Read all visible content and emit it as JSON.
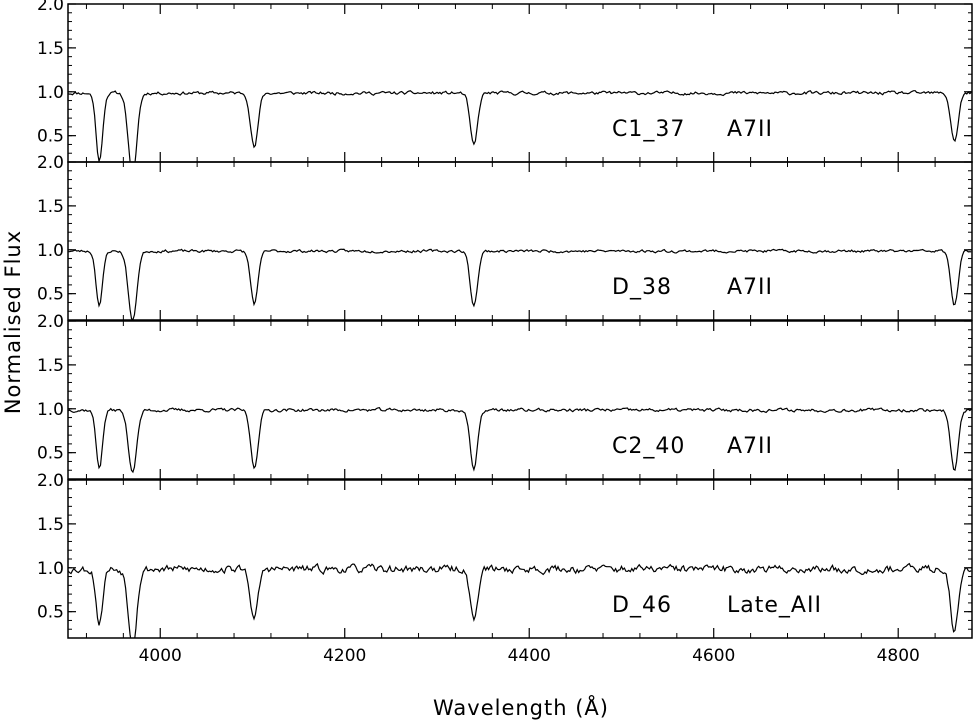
{
  "chart_data": {
    "type": "line",
    "xlabel": "Wavelength (Å)",
    "ylabel": "Normalised Flux",
    "xlim": [
      3900,
      4880
    ],
    "ylim": [
      0.2,
      2.0
    ],
    "x_ticks": [
      4000,
      4200,
      4400,
      4600,
      4800
    ],
    "y_ticks": [
      0.5,
      1.0,
      1.5,
      2.0
    ],
    "grid": false,
    "line_color": "#000000",
    "panels": [
      {
        "star": "C1_37",
        "spectral_type": "A7II",
        "noise": 0.035,
        "seed": 11,
        "features": [
          {
            "center": 3934,
            "depth": 0.78,
            "width": 3.5
          },
          {
            "center": 3970,
            "depth": 0.95,
            "width": 4.5
          },
          {
            "center": 4102,
            "depth": 0.62,
            "width": 4.0
          },
          {
            "center": 4340,
            "depth": 0.6,
            "width": 4.0
          },
          {
            "center": 4861,
            "depth": 0.55,
            "width": 4.0
          }
        ]
      },
      {
        "star": "D_38",
        "spectral_type": "A7II",
        "noise": 0.03,
        "seed": 23,
        "features": [
          {
            "center": 3934,
            "depth": 0.62,
            "width": 3.5
          },
          {
            "center": 3970,
            "depth": 0.8,
            "width": 4.5
          },
          {
            "center": 4102,
            "depth": 0.6,
            "width": 4.0
          },
          {
            "center": 4340,
            "depth": 0.62,
            "width": 4.0
          },
          {
            "center": 4861,
            "depth": 0.62,
            "width": 4.0
          }
        ]
      },
      {
        "star": "C2_40",
        "spectral_type": "A7II",
        "noise": 0.035,
        "seed": 37,
        "features": [
          {
            "center": 3934,
            "depth": 0.65,
            "width": 3.5
          },
          {
            "center": 3970,
            "depth": 0.7,
            "width": 4.5
          },
          {
            "center": 4102,
            "depth": 0.66,
            "width": 4.0
          },
          {
            "center": 4340,
            "depth": 0.68,
            "width": 4.0
          },
          {
            "center": 4861,
            "depth": 0.7,
            "width": 4.0
          }
        ]
      },
      {
        "star": "D_46",
        "spectral_type": "Late_AII",
        "noise": 0.08,
        "seed": 53,
        "features": [
          {
            "center": 3934,
            "depth": 0.62,
            "width": 3.5
          },
          {
            "center": 3970,
            "depth": 0.85,
            "width": 4.5
          },
          {
            "center": 4102,
            "depth": 0.58,
            "width": 4.0
          },
          {
            "center": 4340,
            "depth": 0.58,
            "width": 4.0
          },
          {
            "center": 4861,
            "depth": 0.72,
            "width": 4.0
          }
        ]
      }
    ]
  }
}
